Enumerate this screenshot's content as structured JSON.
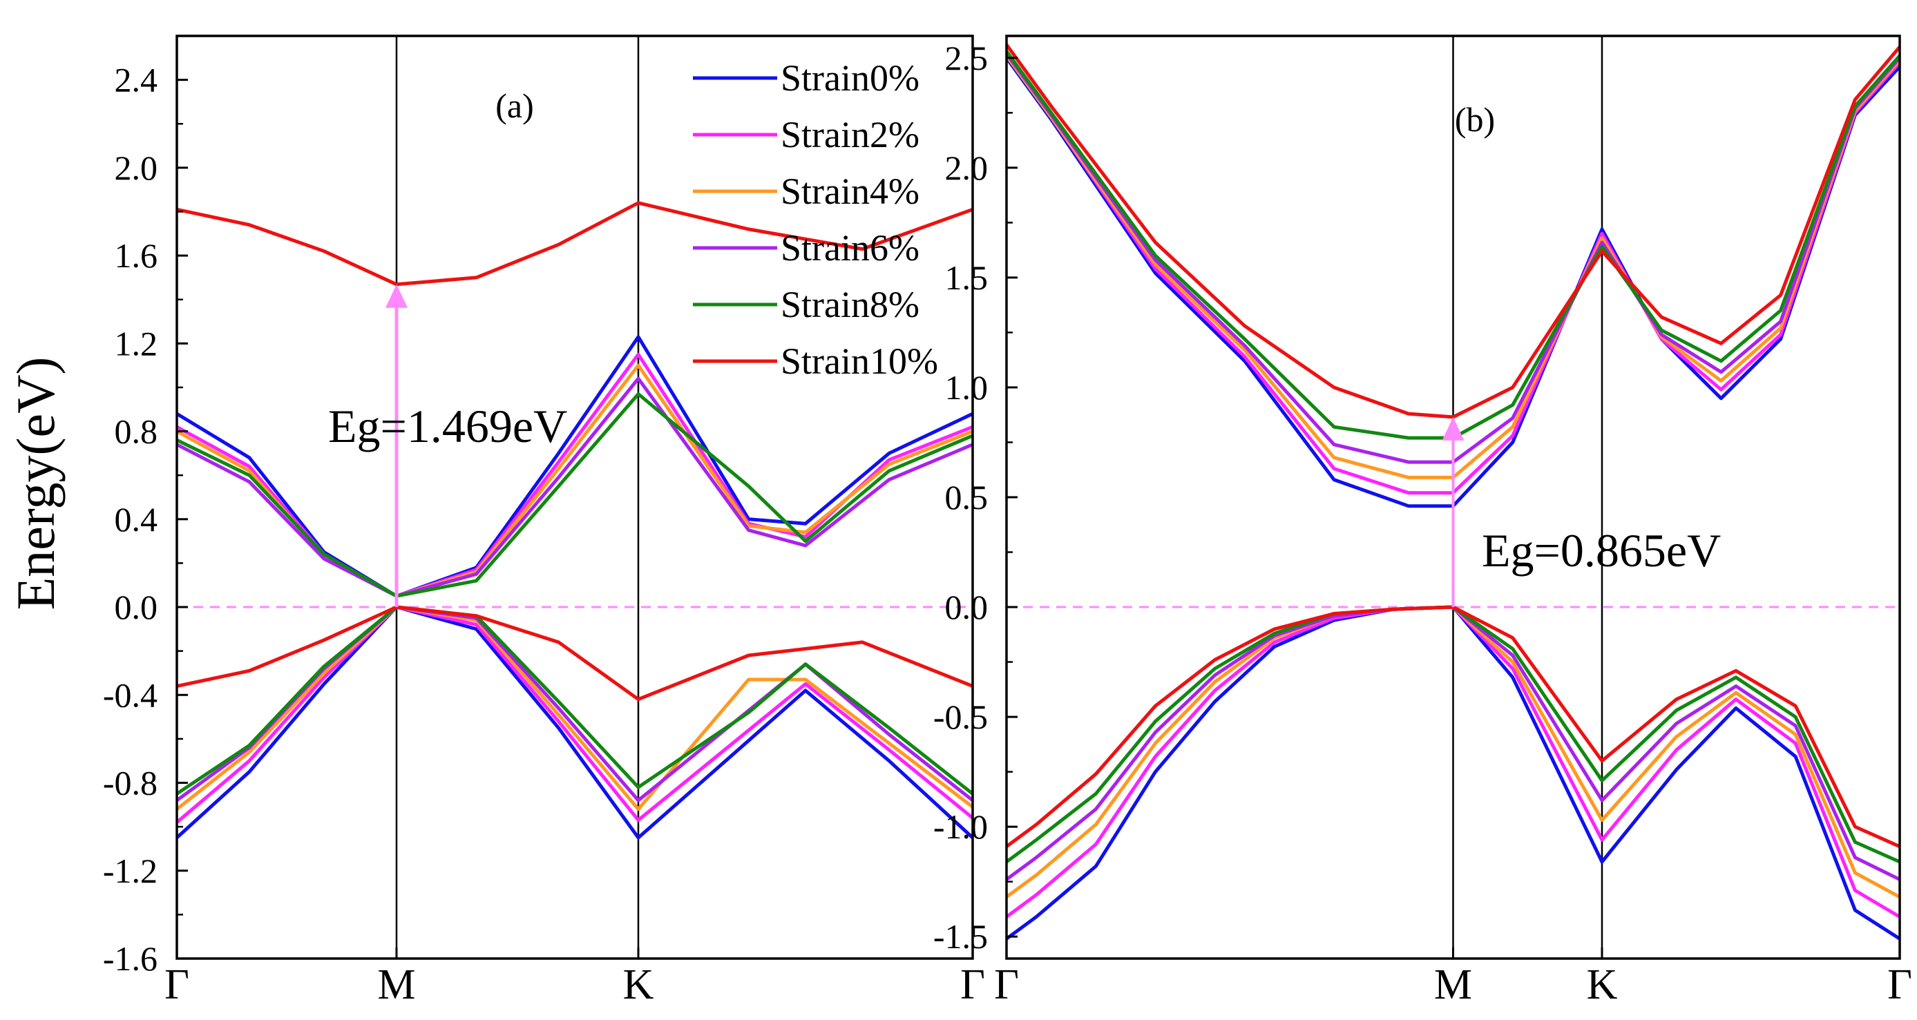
{
  "ylabel": "Energy(eV)",
  "legend": {
    "entries": [
      "Strain0%",
      "Strain2%",
      "Strain4%",
      "Strain6%",
      "Strain8%",
      "Strain10%"
    ],
    "colors": [
      "#1010ee",
      "#ff22ff",
      "#ff9922",
      "#aa22ee",
      "#118811",
      "#ee1111"
    ]
  },
  "chart_data": [
    {
      "type": "line",
      "panel_label": "(a)",
      "ylabel": "Energy(eV)",
      "ylim": [
        -1.6,
        2.6
      ],
      "yticks": [
        "-1.6",
        "-1.2",
        "-0.8",
        "-0.4",
        "0.0",
        "0.4",
        "0.8",
        "1.2",
        "1.6",
        "2.0",
        "2.4"
      ],
      "ytick_values": [
        -1.6,
        -1.2,
        -0.8,
        -0.4,
        0.0,
        0.4,
        0.8,
        1.2,
        1.6,
        2.0,
        2.4
      ],
      "xlim": [
        0,
        3
      ],
      "xtick_values": [
        0,
        1,
        2,
        3
      ],
      "xticks": [
        "Γ",
        "M",
        "K",
        "Γ"
      ],
      "fermi_level": 0.0,
      "annotation": {
        "text": "Eg=1.469eV",
        "x": 1.0,
        "y_from": 0.0,
        "y_to": 1.469
      },
      "series": [
        {
          "name": "Strain0%",
          "color": "#1010ee",
          "valence": {
            "x": [
              0,
              0.33,
              0.67,
              1,
              1.33,
              1.67,
              2,
              2.5,
              2.75,
              3
            ],
            "y": [
              -1.05,
              -0.75,
              -0.35,
              0,
              -0.1,
              -0.55,
              -1.05,
              -0.38,
              -0.7,
              -1.05
            ]
          },
          "conduction": {
            "x": [
              0,
              0.33,
              0.67,
              1,
              1.33,
              1.67,
              2,
              2.33,
              2.5,
              2.75,
              3
            ],
            "y": [
              0.88,
              0.68,
              0.25,
              0.05,
              0.18,
              0.7,
              1.23,
              0.4,
              0.38,
              0.7,
              0.88
            ]
          }
        },
        {
          "name": "Strain2%",
          "color": "#ff22ff",
          "valence": {
            "x": [
              0,
              0.33,
              0.67,
              1,
              1.33,
              1.67,
              2,
              2.5,
              2.75,
              3
            ],
            "y": [
              -0.98,
              -0.7,
              -0.32,
              0,
              -0.08,
              -0.52,
              -0.97,
              -0.35,
              -0.65,
              -0.96
            ]
          },
          "conduction": {
            "x": [
              0,
              0.33,
              0.67,
              1,
              1.33,
              1.67,
              2,
              2.33,
              2.5,
              2.75,
              3
            ],
            "y": [
              0.82,
              0.64,
              0.24,
              0.05,
              0.17,
              0.66,
              1.15,
              0.38,
              0.32,
              0.67,
              0.82
            ]
          }
        },
        {
          "name": "Strain4%",
          "color": "#ff9922",
          "valence": {
            "x": [
              0,
              0.33,
              0.67,
              1,
              1.33,
              1.67,
              2,
              2.33,
              2.5,
              2.75,
              3
            ],
            "y": [
              -0.92,
              -0.66,
              -0.3,
              0,
              -0.06,
              -0.49,
              -0.92,
              -0.33,
              -0.33,
              -0.62,
              -0.91
            ]
          },
          "conduction": {
            "x": [
              0,
              0.33,
              0.67,
              1,
              1.33,
              1.67,
              2,
              2.33,
              2.5,
              2.75,
              3
            ],
            "y": [
              0.8,
              0.62,
              0.23,
              0.05,
              0.16,
              0.63,
              1.1,
              0.37,
              0.34,
              0.65,
              0.8
            ]
          }
        },
        {
          "name": "Strain6%",
          "color": "#aa22ee",
          "valence": {
            "x": [
              0,
              0.33,
              0.67,
              1,
              1.33,
              1.67,
              2,
              2.5,
              2.75,
              3
            ],
            "y": [
              -0.88,
              -0.64,
              -0.28,
              0,
              -0.05,
              -0.46,
              -0.88,
              -0.26,
              -0.58,
              -0.88
            ]
          },
          "conduction": {
            "x": [
              0,
              0.33,
              0.67,
              1,
              1.33,
              1.67,
              2,
              2.33,
              2.5,
              2.75,
              3
            ],
            "y": [
              0.74,
              0.57,
              0.22,
              0.05,
              0.15,
              0.59,
              1.04,
              0.35,
              0.28,
              0.58,
              0.74
            ]
          }
        },
        {
          "name": "Strain8%",
          "color": "#118811",
          "valence": {
            "x": [
              0,
              0.33,
              0.67,
              1,
              1.33,
              1.67,
              2,
              2.33,
              2.5,
              2.75,
              3
            ],
            "y": [
              -0.85,
              -0.63,
              -0.27,
              0,
              -0.04,
              -0.43,
              -0.82,
              -0.48,
              -0.26,
              -0.55,
              -0.85
            ]
          },
          "conduction": {
            "x": [
              0,
              0.33,
              0.67,
              1,
              1.33,
              1.67,
              2,
              2.33,
              2.5,
              2.75,
              3
            ],
            "y": [
              0.76,
              0.6,
              0.24,
              0.05,
              0.12,
              0.55,
              0.97,
              0.55,
              0.3,
              0.62,
              0.78
            ]
          }
        },
        {
          "name": "Strain10%",
          "color": "#ee1111",
          "valence": {
            "x": [
              0,
              0.33,
              0.67,
              1,
              1.33,
              1.67,
              2,
              2.33,
              2.67,
              3
            ],
            "y": [
              -0.36,
              -0.29,
              -0.15,
              0,
              -0.04,
              -0.16,
              -0.42,
              -0.22,
              -0.16,
              -0.36
            ]
          },
          "conduction": {
            "x": [
              0,
              0.33,
              0.67,
              1,
              1.33,
              1.67,
              2,
              2.33,
              2.67,
              3
            ],
            "y": [
              1.81,
              1.74,
              1.62,
              1.469,
              1.5,
              1.65,
              1.84,
              1.72,
              1.63,
              1.81
            ]
          }
        }
      ]
    },
    {
      "type": "line",
      "panel_label": "(b)",
      "ylabel": "",
      "ylim": [
        -1.6,
        2.6
      ],
      "yticks": [
        "-1.5",
        "-1.0",
        "-0.5",
        "0.0",
        "0.5",
        "1.0",
        "1.5",
        "2.0",
        "2.5"
      ],
      "ytick_values": [
        -1.5,
        -1.0,
        -0.5,
        0.0,
        0.5,
        1.0,
        1.5,
        2.0,
        2.5
      ],
      "xlim": [
        0,
        3
      ],
      "xtick_values": [
        0,
        1.5,
        2.0,
        3
      ],
      "xticks": [
        "Γ",
        "M",
        "K",
        "Γ"
      ],
      "fermi_level": 0.0,
      "annotation": {
        "text": "Eg=0.865eV",
        "x": 1.5,
        "y_from": 0.0,
        "y_to": 0.865
      },
      "series": [
        {
          "name": "Strain0%",
          "color": "#1010ee",
          "conduction": {
            "x": [
              0,
              0.15,
              0.5,
              0.8,
              1.1,
              1.35,
              1.5,
              1.7,
              2.0,
              2.2,
              2.4,
              2.6,
              2.85,
              3
            ],
            "y": [
              2.5,
              2.22,
              1.52,
              1.12,
              0.58,
              0.46,
              0.46,
              0.75,
              1.72,
              1.22,
              0.95,
              1.22,
              2.24,
              2.46
            ]
          },
          "valence": {
            "x": [
              0,
              0.1,
              0.3,
              0.5,
              0.7,
              0.9,
              1.1,
              1.3,
              1.5,
              1.7,
              2.0,
              2.25,
              2.45,
              2.65,
              2.85,
              3
            ],
            "y": [
              -1.51,
              -1.41,
              -1.18,
              -0.75,
              -0.43,
              -0.18,
              -0.06,
              -0.01,
              0,
              -0.32,
              -1.16,
              -0.74,
              -0.46,
              -0.68,
              -1.38,
              -1.51
            ]
          }
        },
        {
          "name": "Strain2%",
          "color": "#ff22ff",
          "conduction": {
            "x": [
              0,
              0.15,
              0.5,
              0.8,
              1.1,
              1.35,
              1.5,
              1.7,
              2.0,
              2.2,
              2.4,
              2.6,
              2.85,
              3
            ],
            "y": [
              2.51,
              2.23,
              1.54,
              1.14,
              0.63,
              0.52,
              0.52,
              0.78,
              1.7,
              1.22,
              0.99,
              1.24,
              2.25,
              2.48
            ]
          },
          "valence": {
            "x": [
              0,
              0.1,
              0.3,
              0.5,
              0.7,
              0.9,
              1.1,
              1.3,
              1.5,
              1.7,
              2.0,
              2.25,
              2.45,
              2.65,
              2.85,
              3
            ],
            "y": [
              -1.41,
              -1.31,
              -1.08,
              -0.68,
              -0.38,
              -0.16,
              -0.05,
              -0.01,
              0,
              -0.28,
              -1.06,
              -0.65,
              -0.42,
              -0.62,
              -1.29,
              -1.41
            ]
          }
        },
        {
          "name": "Strain4%",
          "color": "#ff9922",
          "conduction": {
            "x": [
              0,
              0.15,
              0.5,
              0.8,
              1.1,
              1.35,
              1.5,
              1.7,
              2.0,
              2.2,
              2.4,
              2.6,
              2.85,
              3
            ],
            "y": [
              2.51,
              2.23,
              1.56,
              1.17,
              0.68,
              0.59,
              0.59,
              0.82,
              1.68,
              1.23,
              1.03,
              1.27,
              2.26,
              2.49
            ]
          },
          "valence": {
            "x": [
              0,
              0.1,
              0.3,
              0.5,
              0.7,
              0.9,
              1.1,
              1.3,
              1.5,
              1.7,
              2.0,
              2.25,
              2.45,
              2.65,
              2.85,
              3
            ],
            "y": [
              -1.32,
              -1.22,
              -0.99,
              -0.62,
              -0.34,
              -0.14,
              -0.04,
              -0.01,
              0,
              -0.25,
              -0.97,
              -0.59,
              -0.39,
              -0.58,
              -1.21,
              -1.32
            ]
          }
        },
        {
          "name": "Strain6%",
          "color": "#aa22ee",
          "conduction": {
            "x": [
              0,
              0.15,
              0.5,
              0.8,
              1.1,
              1.35,
              1.5,
              1.7,
              2.0,
              2.2,
              2.4,
              2.6,
              2.85,
              3
            ],
            "y": [
              2.52,
              2.24,
              1.58,
              1.19,
              0.74,
              0.66,
              0.66,
              0.86,
              1.66,
              1.24,
              1.07,
              1.3,
              2.27,
              2.5
            ]
          },
          "valence": {
            "x": [
              0,
              0.1,
              0.3,
              0.5,
              0.7,
              0.9,
              1.1,
              1.3,
              1.5,
              1.7,
              2.0,
              2.25,
              2.45,
              2.65,
              2.85,
              3
            ],
            "y": [
              -1.24,
              -1.14,
              -0.92,
              -0.57,
              -0.31,
              -0.13,
              -0.04,
              -0.01,
              0,
              -0.22,
              -0.88,
              -0.53,
              -0.36,
              -0.54,
              -1.14,
              -1.24
            ]
          }
        },
        {
          "name": "Strain8%",
          "color": "#118811",
          "conduction": {
            "x": [
              0,
              0.15,
              0.5,
              0.8,
              1.1,
              1.35,
              1.5,
              1.7,
              2.0,
              2.2,
              2.4,
              2.6,
              2.85,
              3
            ],
            "y": [
              2.53,
              2.25,
              1.6,
              1.22,
              0.82,
              0.77,
              0.77,
              0.92,
              1.64,
              1.26,
              1.12,
              1.35,
              2.28,
              2.51
            ]
          },
          "valence": {
            "x": [
              0,
              0.1,
              0.3,
              0.5,
              0.7,
              0.9,
              1.1,
              1.3,
              1.5,
              1.7,
              2.0,
              2.25,
              2.45,
              2.65,
              2.85,
              3
            ],
            "y": [
              -1.16,
              -1.06,
              -0.85,
              -0.52,
              -0.28,
              -0.12,
              -0.03,
              -0.01,
              0,
              -0.19,
              -0.79,
              -0.47,
              -0.32,
              -0.5,
              -1.07,
              -1.16
            ]
          }
        },
        {
          "name": "Strain10%",
          "color": "#ee1111",
          "conduction": {
            "x": [
              0,
              0.15,
              0.5,
              0.8,
              1.1,
              1.35,
              1.5,
              1.7,
              2.0,
              2.2,
              2.4,
              2.6,
              2.85,
              3
            ],
            "y": [
              2.56,
              2.28,
              1.66,
              1.28,
              1.0,
              0.88,
              0.865,
              1.0,
              1.62,
              1.32,
              1.2,
              1.42,
              2.31,
              2.55
            ]
          },
          "valence": {
            "x": [
              0,
              0.1,
              0.3,
              0.5,
              0.7,
              0.9,
              1.1,
              1.3,
              1.5,
              1.7,
              2.0,
              2.25,
              2.45,
              2.65,
              2.85,
              3
            ],
            "y": [
              -1.09,
              -0.99,
              -0.76,
              -0.45,
              -0.24,
              -0.1,
              -0.03,
              -0.01,
              0,
              -0.14,
              -0.7,
              -0.42,
              -0.29,
              -0.45,
              -1.0,
              -1.09
            ]
          }
        }
      ]
    }
  ]
}
